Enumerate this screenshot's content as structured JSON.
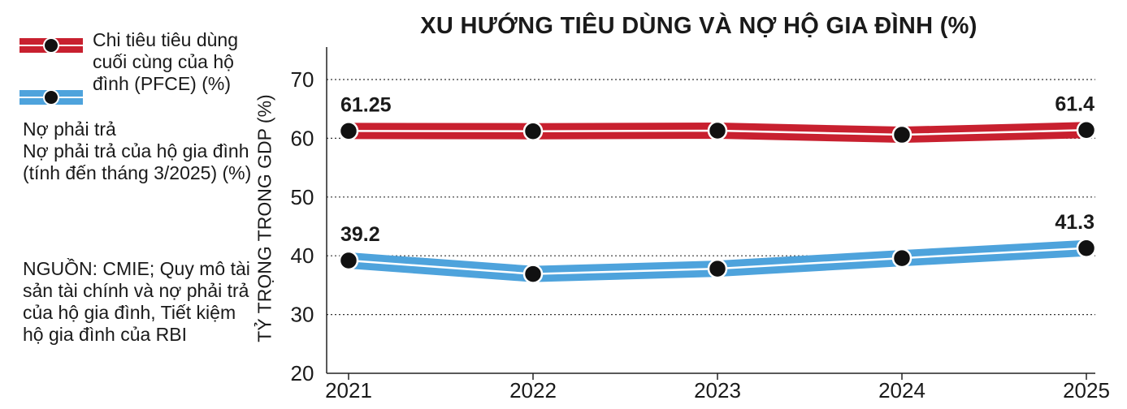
{
  "title": "XU HƯỚNG TIÊU DÙNG VÀ NỢ HỘ GIA ĐÌNH (%)",
  "legend": {
    "pfce_label": "Chi tiêu tiêu dùng cuối cùng của hộ đình (PFCE) (%)",
    "debt_label_1": "Nợ phải trả",
    "debt_label_2": "Nợ phải trả của hộ gia đình (tính đến tháng 3/2025) (%)"
  },
  "source": "NGUỒN: CMIE; Quy mô tài sản tài chính và nợ phải trả của hộ gia đình, Tiết kiệm hộ gia đình của RBI",
  "colors": {
    "pfce": "#c8202f",
    "debt": "#4ea3dc",
    "marker": "#111111"
  },
  "chart_data": {
    "type": "line",
    "title": "XU HƯỚNG TIÊU DÙNG VÀ NỢ HỘ GIA ĐÌNH (%)",
    "xlabel": "",
    "ylabel": "TỶ TRỌNG TRONG GDP (%)",
    "categories": [
      "2021",
      "2022",
      "2023",
      "2024",
      "2025"
    ],
    "ylim": [
      20,
      70
    ],
    "yticks": [
      20,
      30,
      40,
      50,
      60,
      70
    ],
    "grid": "horizontal-dotted",
    "legend_position": "left",
    "series": [
      {
        "name": "Chi tiêu tiêu dùng cuối cùng của hộ đình (PFCE) (%)",
        "values": [
          61.25,
          61.2,
          61.3,
          60.6,
          61.4
        ],
        "labels": [
          "61.25",
          "",
          "",
          "",
          "61.4"
        ]
      },
      {
        "name": "Nợ phải trả của hộ gia đình (tính đến tháng 3/2025) (%)",
        "values": [
          39.2,
          36.9,
          37.8,
          39.6,
          41.3
        ],
        "labels": [
          "39.2",
          "",
          "",
          "",
          "41.3"
        ]
      }
    ]
  }
}
